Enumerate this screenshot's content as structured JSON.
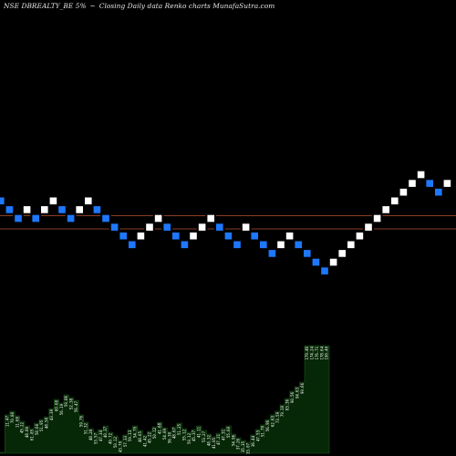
{
  "header": {
    "symbol": "NSE DBREALTY_BE 5%",
    "separator": "~",
    "description": "Closing Daily data  Renko  charts MunafaSutra.com"
  },
  "chart_data": {
    "type": "renko",
    "title": "NSE DBREALTY_BE 5% ~ Closing Daily data Renko charts MunafaSutra.com",
    "box_percent": 5,
    "bricks": [
      {
        "level": 0,
        "direction": "down"
      },
      {
        "level": -1,
        "direction": "down"
      },
      {
        "level": -2,
        "direction": "down"
      },
      {
        "level": -1,
        "direction": "up"
      },
      {
        "level": -2,
        "direction": "down"
      },
      {
        "level": -1,
        "direction": "up"
      },
      {
        "level": 0,
        "direction": "up"
      },
      {
        "level": -1,
        "direction": "down"
      },
      {
        "level": -2,
        "direction": "down"
      },
      {
        "level": -1,
        "direction": "up"
      },
      {
        "level": 0,
        "direction": "up"
      },
      {
        "level": -1,
        "direction": "down"
      },
      {
        "level": -2,
        "direction": "down"
      },
      {
        "level": -3,
        "direction": "down"
      },
      {
        "level": -4,
        "direction": "down"
      },
      {
        "level": -5,
        "direction": "down"
      },
      {
        "level": -4,
        "direction": "up"
      },
      {
        "level": -3,
        "direction": "up"
      },
      {
        "level": -2,
        "direction": "up"
      },
      {
        "level": -3,
        "direction": "down"
      },
      {
        "level": -4,
        "direction": "down"
      },
      {
        "level": -5,
        "direction": "down"
      },
      {
        "level": -4,
        "direction": "up"
      },
      {
        "level": -3,
        "direction": "up"
      },
      {
        "level": -2,
        "direction": "up"
      },
      {
        "level": -3,
        "direction": "down"
      },
      {
        "level": -4,
        "direction": "down"
      },
      {
        "level": -5,
        "direction": "down"
      },
      {
        "level": -3,
        "direction": "up"
      },
      {
        "level": -4,
        "direction": "down"
      },
      {
        "level": -5,
        "direction": "down"
      },
      {
        "level": -6,
        "direction": "down"
      },
      {
        "level": -5,
        "direction": "up"
      },
      {
        "level": -4,
        "direction": "up"
      },
      {
        "level": -5,
        "direction": "down"
      },
      {
        "level": -6,
        "direction": "down"
      },
      {
        "level": -7,
        "direction": "down"
      },
      {
        "level": -8,
        "direction": "down"
      },
      {
        "level": -7,
        "direction": "up"
      },
      {
        "level": -6,
        "direction": "up"
      },
      {
        "level": -5,
        "direction": "up"
      },
      {
        "level": -4,
        "direction": "up"
      },
      {
        "level": -3,
        "direction": "up"
      },
      {
        "level": -2,
        "direction": "up"
      },
      {
        "level": -1,
        "direction": "up"
      },
      {
        "level": 0,
        "direction": "up"
      },
      {
        "level": 1,
        "direction": "up"
      },
      {
        "level": 2,
        "direction": "up"
      },
      {
        "level": 3,
        "direction": "up"
      },
      {
        "level": 2,
        "direction": "down"
      },
      {
        "level": 1,
        "direction": "down"
      },
      {
        "level": 2,
        "direction": "up"
      }
    ],
    "volume_bars": [
      {
        "volume": 1,
        "label": ""
      },
      {
        "volume": 42,
        "label": "11.47"
      },
      {
        "volume": 46,
        "label": "70.80"
      },
      {
        "volume": 41,
        "label": "11.60"
      },
      {
        "volume": 35,
        "label": "45.22"
      },
      {
        "volume": 30,
        "label": "48.80"
      },
      {
        "volume": 27,
        "label": "61.85"
      },
      {
        "volume": 33,
        "label": "58.60"
      },
      {
        "volume": 37,
        "label": "51.95"
      },
      {
        "volume": 40,
        "label": "48.50"
      },
      {
        "volume": 49,
        "label": "43.39"
      },
      {
        "volume": 59,
        "label": "60.68"
      },
      {
        "volume": 55,
        "label": "56.19"
      },
      {
        "volume": 64,
        "label": "59.86"
      },
      {
        "volume": 61,
        "label": "52.38"
      },
      {
        "volume": 58,
        "label": "56.47"
      },
      {
        "volume": 42,
        "label": "59.76"
      },
      {
        "volume": 34,
        "label": "51.32"
      },
      {
        "volume": 27,
        "label": "48.28"
      },
      {
        "volume": 23,
        "label": "53.57"
      },
      {
        "volume": 26,
        "label": "47.34"
      },
      {
        "volume": 30,
        "label": "40.37"
      },
      {
        "volume": 23,
        "label": "49.72"
      },
      {
        "volume": 19,
        "label": "50.12"
      },
      {
        "volume": 14,
        "label": "43.70"
      },
      {
        "volume": 20,
        "label": "57.33"
      },
      {
        "volume": 26,
        "label": "59.13"
      },
      {
        "volume": 30,
        "label": "54.70"
      },
      {
        "volume": 25,
        "label": "48.65"
      },
      {
        "volume": 20,
        "label": "41.42"
      },
      {
        "volume": 24,
        "label": "45.22"
      },
      {
        "volume": 29,
        "label": "50.12"
      },
      {
        "volume": 34,
        "label": "41.68"
      },
      {
        "volume": 28,
        "label": "54.89"
      },
      {
        "volume": 24,
        "label": "56.30"
      },
      {
        "volume": 29,
        "label": "48.67"
      },
      {
        "volume": 33,
        "label": "51.25"
      },
      {
        "volume": 27,
        "label": "55.12"
      },
      {
        "volume": 23,
        "label": "59.12"
      },
      {
        "volume": 26,
        "label": "45.37"
      },
      {
        "volume": 30,
        "label": "41.11"
      },
      {
        "volume": 25,
        "label": "53.27"
      },
      {
        "volume": 21,
        "label": "48.32"
      },
      {
        "volume": 18,
        "label": "41.05"
      },
      {
        "volume": 22,
        "label": "47.21"
      },
      {
        "volume": 27,
        "label": "47.31"
      },
      {
        "volume": 30,
        "label": "55.60"
      },
      {
        "volume": 21,
        "label": "54.96"
      },
      {
        "volume": 17,
        "label": "37.26"
      },
      {
        "volume": 14,
        "label": "35.35"
      },
      {
        "volume": 12,
        "label": "33.07"
      },
      {
        "volume": 20,
        "label": "36.44"
      },
      {
        "volume": 26,
        "label": "47.53"
      },
      {
        "volume": 31,
        "label": "51.70"
      },
      {
        "volume": 37,
        "label": "56.96"
      },
      {
        "volume": 42,
        "label": "62.63"
      },
      {
        "volume": 46,
        "label": "73.59"
      },
      {
        "volume": 53,
        "label": "79.10"
      },
      {
        "volume": 60,
        "label": "83.36"
      },
      {
        "volume": 68,
        "label": "90.56"
      },
      {
        "volume": 73,
        "label": "94.63"
      },
      {
        "volume": 78,
        "label": "99.66"
      },
      {
        "volume": 118,
        "label": "179.46"
      },
      {
        "volume": 118,
        "label": "174.24"
      },
      {
        "volume": 118,
        "label": "176.71"
      },
      {
        "volume": 118,
        "label": "178.64"
      },
      {
        "volume": 118,
        "label": "190.40"
      }
    ],
    "reference_lines": [
      {
        "level": -2.2
      },
      {
        "level": -3.7
      }
    ],
    "colors": {
      "up_brick": "#ffffff",
      "down_brick": "#1e78ff",
      "brick_border": "#000000",
      "reference_line": "#b5522a",
      "volume_fill": "#062806",
      "volume_line": "#1f5a1f",
      "background": "#000000"
    }
  }
}
